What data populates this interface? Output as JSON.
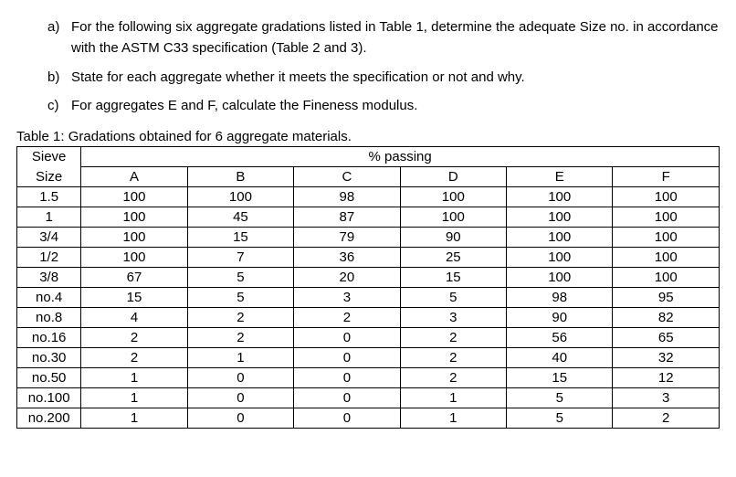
{
  "questions": [
    {
      "marker": "a)",
      "text": "For the following six aggregate gradations listed in Table 1, determine the adequate Size no. in accordance with the ASTM C33 specification (Table 2 and 3)."
    },
    {
      "marker": "b)",
      "text": "State for each aggregate whether it meets the specification or not and why."
    },
    {
      "marker": "c)",
      "text": "For aggregates E and F, calculate the Fineness modulus."
    }
  ],
  "table": {
    "caption": "Table 1: Gradations obtained for 6 aggregate materials.",
    "corner_top": "Sieve",
    "corner_bottom": "Size",
    "header_span": "% passing",
    "columns": [
      "A",
      "B",
      "C",
      "D",
      "E",
      "F"
    ],
    "rows": [
      {
        "sieve": "1.5",
        "vals": [
          "100",
          "100",
          "98",
          "100",
          "100",
          "100"
        ]
      },
      {
        "sieve": "1",
        "vals": [
          "100",
          "45",
          "87",
          "100",
          "100",
          "100"
        ]
      },
      {
        "sieve": "3/4",
        "vals": [
          "100",
          "15",
          "79",
          "90",
          "100",
          "100"
        ]
      },
      {
        "sieve": "1/2",
        "vals": [
          "100",
          "7",
          "36",
          "25",
          "100",
          "100"
        ]
      },
      {
        "sieve": "3/8",
        "vals": [
          "67",
          "5",
          "20",
          "15",
          "100",
          "100"
        ]
      },
      {
        "sieve": "no.4",
        "vals": [
          "15",
          "5",
          "3",
          "5",
          "98",
          "95"
        ]
      },
      {
        "sieve": "no.8",
        "vals": [
          "4",
          "2",
          "2",
          "3",
          "90",
          "82"
        ]
      },
      {
        "sieve": "no.16",
        "vals": [
          "2",
          "2",
          "0",
          "2",
          "56",
          "65"
        ]
      },
      {
        "sieve": "no.30",
        "vals": [
          "2",
          "1",
          "0",
          "2",
          "40",
          "32"
        ]
      },
      {
        "sieve": "no.50",
        "vals": [
          "1",
          "0",
          "0",
          "2",
          "15",
          "12"
        ]
      },
      {
        "sieve": "no.100",
        "vals": [
          "1",
          "0",
          "0",
          "1",
          "5",
          "3"
        ]
      },
      {
        "sieve": "no.200",
        "vals": [
          "1",
          "0",
          "0",
          "1",
          "5",
          "2"
        ]
      }
    ],
    "border_color": "#000000",
    "background_color": "#ffffff",
    "font_size_pt": 11
  }
}
